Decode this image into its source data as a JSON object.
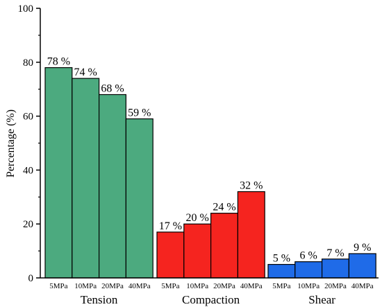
{
  "chart_data": {
    "type": "bar",
    "title": "",
    "xlabel": "",
    "ylabel": "Percentage (%)",
    "ylim": [
      0,
      100
    ],
    "yticks": [
      0,
      20,
      40,
      60,
      80,
      100
    ],
    "grid": false,
    "legend": "none",
    "groups": [
      {
        "name": "Tension",
        "color": "#4caa7f",
        "categories": [
          "5MPa",
          "10MPa",
          "20MPa",
          "40MPa"
        ],
        "values": [
          78,
          74,
          68,
          59
        ],
        "labels": [
          "78 %",
          "74 %",
          "68 %",
          "59 %"
        ]
      },
      {
        "name": "Compaction",
        "color": "#f5241f",
        "categories": [
          "5MPa",
          "10MPa",
          "20MPa",
          "40MPa"
        ],
        "values": [
          17,
          20,
          24,
          32
        ],
        "labels": [
          "17 %",
          "20 %",
          "24 %",
          "32 %"
        ]
      },
      {
        "name": "Shear",
        "color": "#1f6be8",
        "categories": [
          "5MPa",
          "10MPa",
          "20MPa",
          "40MPa"
        ],
        "values": [
          5,
          6,
          7,
          9
        ],
        "labels": [
          "5 %",
          "6 %",
          "7 %",
          "9 %"
        ]
      }
    ]
  }
}
